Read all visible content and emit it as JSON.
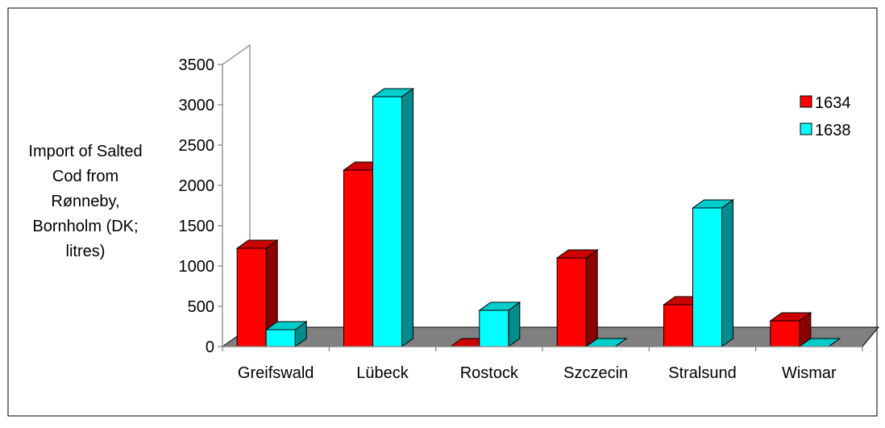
{
  "chart_data": {
    "type": "bar",
    "three_d": true,
    "categories": [
      "Greifswald",
      "Lübeck",
      "Rostock",
      "Szczecin",
      "Stralsund",
      "Wismar"
    ],
    "series": [
      {
        "name": "1634",
        "color": "#ff0000",
        "values": [
          1220,
          2190,
          0,
          1100,
          520,
          320
        ]
      },
      {
        "name": "1638",
        "color": "#00ffff",
        "values": [
          210,
          3100,
          450,
          0,
          1720,
          0
        ]
      }
    ],
    "ylabel": "Import of Salted Cod from Rønneby, Bornholm (DK; litres)",
    "ylabel_lines": [
      "Import of Salted",
      "Cod from",
      "Rønneby,",
      "Bornholm (DK;",
      "litres)"
    ],
    "yticks": [
      0,
      500,
      1000,
      1500,
      2000,
      2500,
      3000,
      3500
    ],
    "ylim": [
      0,
      3500
    ],
    "legend_position": "top-right",
    "floor_color": "#808080"
  }
}
